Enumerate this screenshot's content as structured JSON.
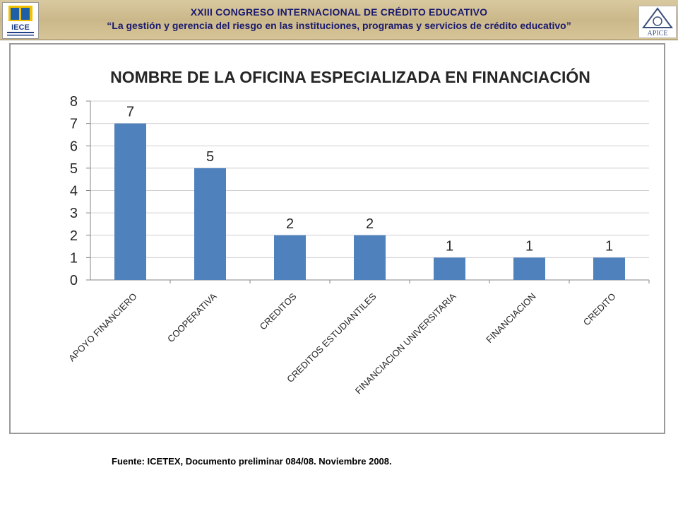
{
  "header": {
    "line1": "XXIII CONGRESO INTERNACIONAL DE CRÉDITO EDUCATIVO",
    "line2": "“La gestión y gerencia del riesgo en las instituciones, programas y servicios de crédito educativo”",
    "logo_left_text": "IECE",
    "logo_right_text": "APICE"
  },
  "chart_data": {
    "type": "bar",
    "title": "NOMBRE DE LA OFICINA ESPECIALIZADA EN FINANCIACIÓN",
    "categories": [
      "APOYO FINANCIERO",
      "COOPERATIVA",
      "CREDITOS",
      "CREDITOS ESTUDIANTILES",
      "FINANCIACION UNIVERSITARIA",
      "FINANCIACION",
      "CREDITO"
    ],
    "values": [
      7,
      5,
      2,
      2,
      1,
      1,
      1
    ],
    "ylim": [
      0,
      8
    ],
    "yticks": [
      0,
      1,
      2,
      3,
      4,
      5,
      6,
      7,
      8
    ],
    "grid": true,
    "bar_color": "#4f81bd",
    "legend": "none"
  },
  "footer": {
    "source": "Fuente:  ICETEX, Documento preliminar  084/08. Noviembre 2008."
  }
}
